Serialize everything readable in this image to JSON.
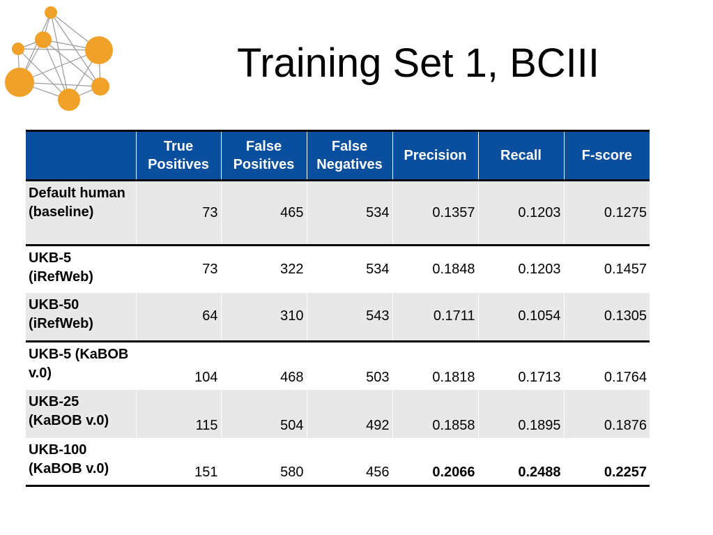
{
  "title": "Training Set 1, BCIII",
  "colors": {
    "header_bg": "#0a4f9d",
    "logo_orange": "#f0a12a",
    "row_shade": "#e8e8e8"
  },
  "logo": {
    "icon": "network-graph-icon"
  },
  "table": {
    "headers": [
      "",
      "True Positives",
      "False Positives",
      "False Negatives",
      "Precision",
      "Recall",
      "F-score"
    ],
    "rows": [
      {
        "name": "Default human (baseline)",
        "tp": "73",
        "fp": "465",
        "fn": "534",
        "precision": "0.1357",
        "recall": "0.1203",
        "fscore": "0.1275"
      },
      {
        "name": "UKB-5 (iRefWeb)",
        "tp": "73",
        "fp": "322",
        "fn": "534",
        "precision": "0.1848",
        "recall": "0.1203",
        "fscore": "0.1457"
      },
      {
        "name": "UKB-50 (iRefWeb)",
        "tp": "64",
        "fp": "310",
        "fn": "543",
        "precision": "0.1711",
        "recall": "0.1054",
        "fscore": "0.1305"
      },
      {
        "name": "UKB-5 (KaBOB v.0)",
        "tp": "104",
        "fp": "468",
        "fn": "503",
        "precision": "0.1818",
        "recall": "0.1713",
        "fscore": "0.1764"
      },
      {
        "name": "UKB-25 (KaBOB v.0)",
        "tp": "115",
        "fp": "504",
        "fn": "492",
        "precision": "0.1858",
        "recall": "0.1895",
        "fscore": "0.1876"
      },
      {
        "name": "UKB-100 (KaBOB v.0)",
        "tp": "151",
        "fp": "580",
        "fn": "456",
        "precision": "0.2066",
        "recall": "0.2488",
        "fscore": "0.2257"
      }
    ]
  }
}
